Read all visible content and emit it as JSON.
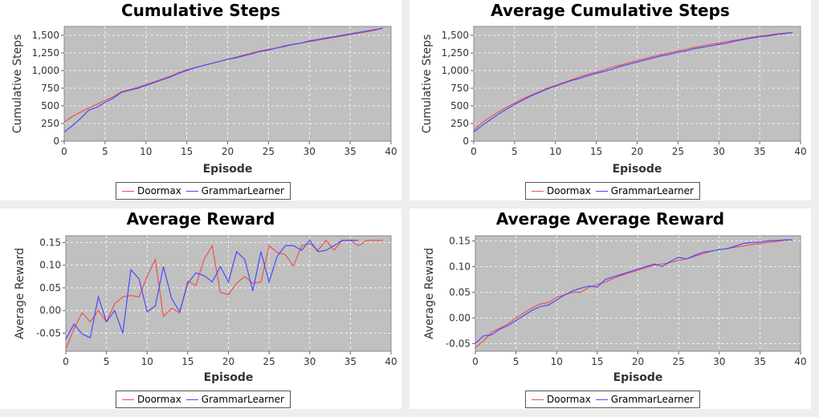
{
  "colors": {
    "doormax": "#f05050",
    "grammar": "#4a4aff",
    "plot_bg": "#c0c0c0"
  },
  "chart_data": [
    {
      "type": "line",
      "title": "Cumulative Steps",
      "xlabel": "Episode",
      "ylabel": "Cumulative Steps",
      "xlim": [
        0,
        40
      ],
      "ylim": [
        0,
        1625
      ],
      "xticks": [
        0,
        5,
        10,
        15,
        20,
        25,
        30,
        35,
        40
      ],
      "yticks": [
        0,
        250,
        500,
        750,
        1000,
        1250,
        1500
      ],
      "ytick_labels": [
        "0",
        "250",
        "500",
        "750",
        "1,000",
        "1,250",
        "1,500"
      ],
      "grid": true,
      "legend_position": "bottom-center",
      "series": [
        {
          "name": "Doormax",
          "x": [
            0,
            1,
            2,
            3,
            4,
            5,
            6,
            7,
            8,
            9,
            10,
            11,
            12,
            13,
            14,
            15,
            16,
            17,
            18,
            19,
            20,
            21,
            22,
            23,
            24,
            25,
            26,
            27,
            28,
            29,
            30,
            31,
            32,
            33,
            34,
            35,
            36,
            37,
            38,
            39
          ],
          "values": [
            270,
            350,
            410,
            470,
            520,
            580,
            630,
            700,
            730,
            760,
            800,
            840,
            880,
            920,
            970,
            1010,
            1040,
            1070,
            1100,
            1130,
            1160,
            1190,
            1220,
            1250,
            1280,
            1300,
            1320,
            1340,
            1370,
            1390,
            1410,
            1430,
            1450,
            1470,
            1490,
            1510,
            1530,
            1550,
            1570,
            1600
          ]
        },
        {
          "name": "GrammarLearner",
          "x": [
            0,
            1,
            2,
            3,
            4,
            5,
            6,
            7,
            8,
            9,
            10,
            11,
            12,
            13,
            14,
            15,
            16,
            17,
            18,
            19,
            20,
            21,
            22,
            23,
            24,
            25,
            26,
            27,
            28,
            29,
            30,
            31,
            32,
            33,
            34,
            35,
            36,
            37,
            38,
            39
          ],
          "values": [
            130,
            220,
            320,
            440,
            480,
            550,
            610,
            690,
            720,
            750,
            790,
            830,
            870,
            910,
            960,
            1000,
            1040,
            1070,
            1100,
            1130,
            1160,
            1180,
            1210,
            1240,
            1270,
            1290,
            1320,
            1350,
            1370,
            1390,
            1420,
            1440,
            1460,
            1480,
            1500,
            1520,
            1540,
            1560,
            1580,
            1600
          ]
        }
      ]
    },
    {
      "type": "line",
      "title": "Average Cumulative Steps",
      "xlabel": "Episode",
      "ylabel": "Cumulative Steps",
      "xlim": [
        0,
        40
      ],
      "ylim": [
        0,
        1625
      ],
      "xticks": [
        0,
        5,
        10,
        15,
        20,
        25,
        30,
        35,
        40
      ],
      "yticks": [
        0,
        250,
        500,
        750,
        1000,
        1250,
        1500
      ],
      "ytick_labels": [
        "0",
        "250",
        "500",
        "750",
        "1,000",
        "1,250",
        "1,500"
      ],
      "grid": true,
      "legend_position": "bottom-center",
      "series": [
        {
          "name": "Doormax",
          "x": [
            0,
            1,
            2,
            3,
            4,
            5,
            6,
            7,
            8,
            9,
            10,
            11,
            12,
            13,
            14,
            15,
            16,
            17,
            18,
            19,
            20,
            21,
            22,
            23,
            24,
            25,
            26,
            27,
            28,
            29,
            30,
            31,
            32,
            33,
            34,
            35,
            36,
            37,
            38,
            39
          ],
          "values": [
            160,
            260,
            340,
            410,
            480,
            540,
            600,
            650,
            700,
            750,
            790,
            830,
            870,
            910,
            950,
            980,
            1010,
            1050,
            1080,
            1110,
            1140,
            1170,
            1200,
            1230,
            1250,
            1280,
            1300,
            1330,
            1350,
            1370,
            1390,
            1410,
            1430,
            1450,
            1470,
            1490,
            1500,
            1520,
            1530,
            1540
          ]
        },
        {
          "name": "GrammarLearner",
          "x": [
            0,
            1,
            2,
            3,
            4,
            5,
            6,
            7,
            8,
            9,
            10,
            11,
            12,
            13,
            14,
            15,
            16,
            17,
            18,
            19,
            20,
            21,
            22,
            23,
            24,
            25,
            26,
            27,
            28,
            29,
            30,
            31,
            32,
            33,
            34,
            35,
            36,
            37,
            38,
            39
          ],
          "values": [
            130,
            220,
            300,
            380,
            450,
            520,
            580,
            640,
            690,
            740,
            780,
            820,
            860,
            890,
            930,
            960,
            990,
            1020,
            1060,
            1090,
            1120,
            1150,
            1180,
            1210,
            1230,
            1260,
            1280,
            1310,
            1330,
            1350,
            1370,
            1390,
            1420,
            1440,
            1460,
            1480,
            1490,
            1510,
            1520,
            1540
          ]
        }
      ]
    },
    {
      "type": "line",
      "title": "Average Reward",
      "xlabel": "Episode",
      "ylabel": "Average Reward",
      "xlim": [
        0,
        40
      ],
      "ylim": [
        -0.09,
        0.165
      ],
      "xticks": [
        0,
        5,
        10,
        15,
        20,
        25,
        30,
        35,
        40
      ],
      "yticks": [
        -0.05,
        0,
        0.05,
        0.1,
        0.15
      ],
      "ytick_labels": [
        "-0.05",
        "0.00",
        "0.05",
        "0.10",
        "0.15"
      ],
      "grid": true,
      "legend_position": "bottom-center",
      "series": [
        {
          "name": "Doormax",
          "x": [
            0,
            1,
            2,
            3,
            4,
            5,
            6,
            7,
            8,
            9,
            10,
            11,
            12,
            13,
            14,
            15,
            16,
            17,
            18,
            19,
            20,
            21,
            22,
            23,
            24,
            25,
            26,
            27,
            28,
            29,
            30,
            31,
            32,
            33,
            34,
            35,
            36,
            37,
            38,
            39
          ],
          "values": [
            -0.085,
            -0.04,
            -0.005,
            -0.025,
            0.0,
            -0.025,
            0.015,
            0.03,
            0.033,
            0.03,
            0.075,
            0.113,
            -0.013,
            0.005,
            -0.005,
            0.065,
            0.055,
            0.113,
            0.143,
            0.04,
            0.035,
            0.06,
            0.075,
            0.06,
            0.063,
            0.143,
            0.128,
            0.123,
            0.098,
            0.143,
            0.148,
            0.133,
            0.155,
            0.133,
            0.155,
            0.155,
            0.143,
            0.155,
            0.155,
            0.155
          ]
        },
        {
          "name": "GrammarLearner",
          "x": [
            0,
            1,
            2,
            3,
            4,
            5,
            6,
            7,
            8,
            9,
            10,
            11,
            12,
            13,
            14,
            15,
            16,
            17,
            18,
            19,
            20,
            21,
            22,
            23,
            24,
            25,
            26,
            27,
            28,
            29,
            30,
            31,
            32,
            33,
            34,
            35,
            36
          ],
          "values": [
            -0.063,
            -0.03,
            -0.052,
            -0.06,
            0.03,
            -0.025,
            0.0,
            -0.05,
            0.09,
            0.07,
            -0.003,
            0.01,
            0.097,
            0.027,
            -0.003,
            0.06,
            0.083,
            0.077,
            0.063,
            0.097,
            0.063,
            0.13,
            0.113,
            0.043,
            0.13,
            0.063,
            0.12,
            0.143,
            0.143,
            0.133,
            0.155,
            0.13,
            0.133,
            0.143,
            0.155,
            0.155,
            0.155
          ]
        }
      ]
    },
    {
      "type": "line",
      "title": "Average Average Reward",
      "xlabel": "Episode",
      "ylabel": "Average Reward",
      "xlim": [
        0,
        40
      ],
      "ylim": [
        -0.065,
        0.16
      ],
      "xticks": [
        0,
        5,
        10,
        15,
        20,
        25,
        30,
        35,
        40
      ],
      "yticks": [
        -0.05,
        0,
        0.05,
        0.1,
        0.15
      ],
      "ytick_labels": [
        "-0.05",
        "0.00",
        "0.05",
        "0.10",
        "0.15"
      ],
      "grid": true,
      "legend_position": "bottom-center",
      "series": [
        {
          "name": "Doormax",
          "x": [
            0,
            1,
            2,
            3,
            4,
            5,
            6,
            7,
            8,
            9,
            10,
            11,
            12,
            13,
            14,
            15,
            16,
            17,
            18,
            19,
            20,
            21,
            22,
            23,
            24,
            25,
            26,
            27,
            28,
            29,
            30,
            31,
            32,
            33,
            34,
            35,
            36,
            37,
            38,
            39
          ],
          "values": [
            -0.058,
            -0.045,
            -0.028,
            -0.02,
            -0.012,
            0.0,
            0.01,
            0.02,
            0.027,
            0.03,
            0.04,
            0.045,
            0.05,
            0.05,
            0.06,
            0.065,
            0.07,
            0.077,
            0.083,
            0.088,
            0.093,
            0.098,
            0.103,
            0.105,
            0.108,
            0.112,
            0.115,
            0.12,
            0.125,
            0.13,
            0.133,
            0.135,
            0.138,
            0.14,
            0.143,
            0.145,
            0.147,
            0.149,
            0.151,
            0.152
          ]
        },
        {
          "name": "GrammarLearner",
          "x": [
            0,
            1,
            2,
            3,
            4,
            5,
            6,
            7,
            8,
            9,
            10,
            11,
            12,
            13,
            14,
            15,
            16,
            17,
            18,
            19,
            20,
            21,
            22,
            23,
            24,
            25,
            26,
            27,
            28,
            29,
            30,
            31,
            32,
            33,
            34,
            35,
            36,
            37,
            38,
            39
          ],
          "values": [
            -0.05,
            -0.035,
            -0.033,
            -0.022,
            -0.015,
            -0.005,
            0.005,
            0.015,
            0.022,
            0.025,
            0.035,
            0.045,
            0.053,
            0.058,
            0.062,
            0.06,
            0.075,
            0.08,
            0.085,
            0.09,
            0.095,
            0.1,
            0.105,
            0.1,
            0.11,
            0.118,
            0.115,
            0.122,
            0.128,
            0.13,
            0.133,
            0.135,
            0.14,
            0.145,
            0.147,
            0.148,
            0.15,
            0.151,
            0.152,
            0.152
          ]
        }
      ]
    }
  ],
  "legend_labels": [
    "Doormax",
    "GrammarLearner"
  ]
}
